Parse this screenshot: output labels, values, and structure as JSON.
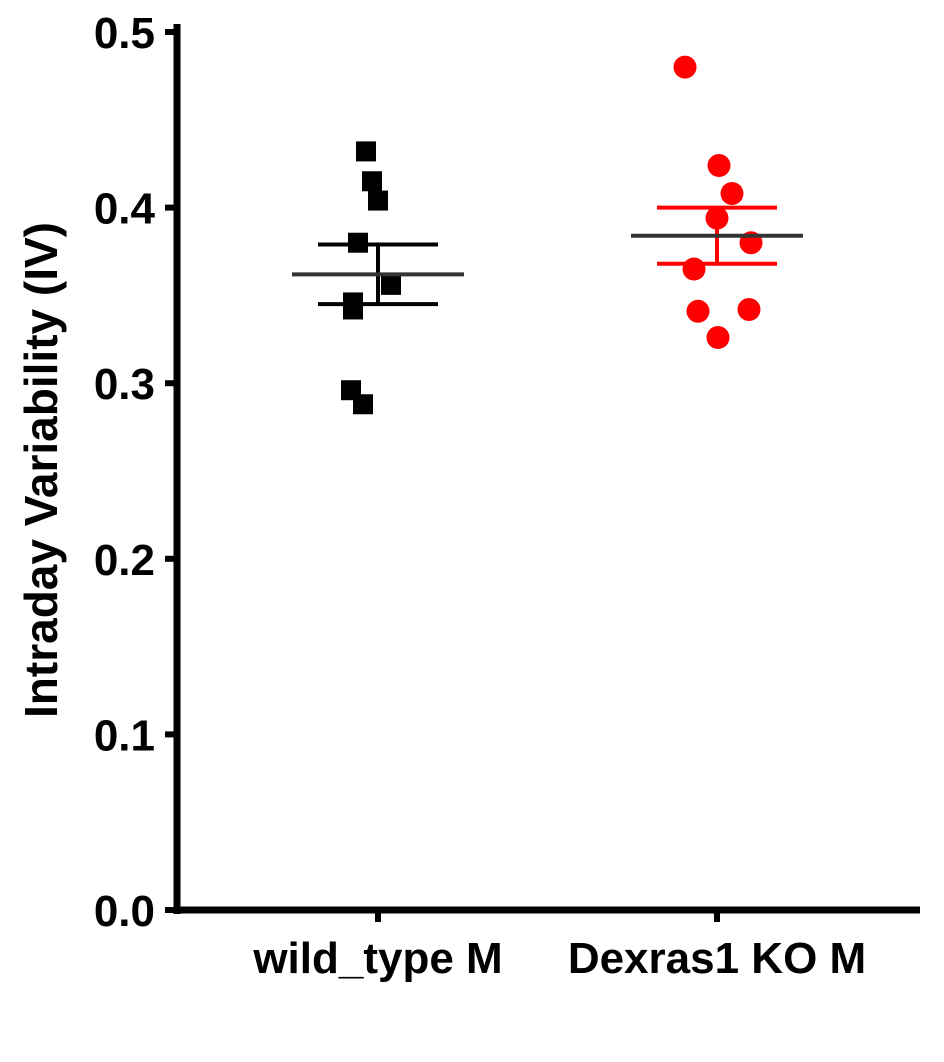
{
  "chart_data": {
    "type": "scatter",
    "title": "",
    "xlabel": "",
    "ylabel": "Intraday Variability (IV)",
    "ylim": [
      0,
      0.5
    ],
    "yticks": [
      "0.0",
      "0.1",
      "0.2",
      "0.3",
      "0.4",
      "0.5"
    ],
    "categories": [
      "wild_type M",
      "Dexras1 KO M"
    ],
    "grid": false,
    "legend": "none",
    "series": [
      {
        "category": "wild_type M",
        "marker": "square",
        "color": "#000000",
        "errorbar_color": "#000000",
        "mean_color": "#333333",
        "values": [
          0.432,
          0.415,
          0.404,
          0.38,
          0.356,
          0.346,
          0.342,
          0.296,
          0.288
        ],
        "mean": 0.362,
        "sem_low": 0.345,
        "sem_high": 0.379
      },
      {
        "category": "Dexras1 KO M",
        "marker": "circle",
        "color": "#ff0000",
        "errorbar_color": "#ff0000",
        "mean_color": "#333333",
        "values": [
          0.48,
          0.424,
          0.408,
          0.394,
          0.38,
          0.365,
          0.342,
          0.341,
          0.326
        ],
        "mean": 0.384,
        "sem_low": 0.368,
        "sem_high": 0.4
      }
    ]
  }
}
